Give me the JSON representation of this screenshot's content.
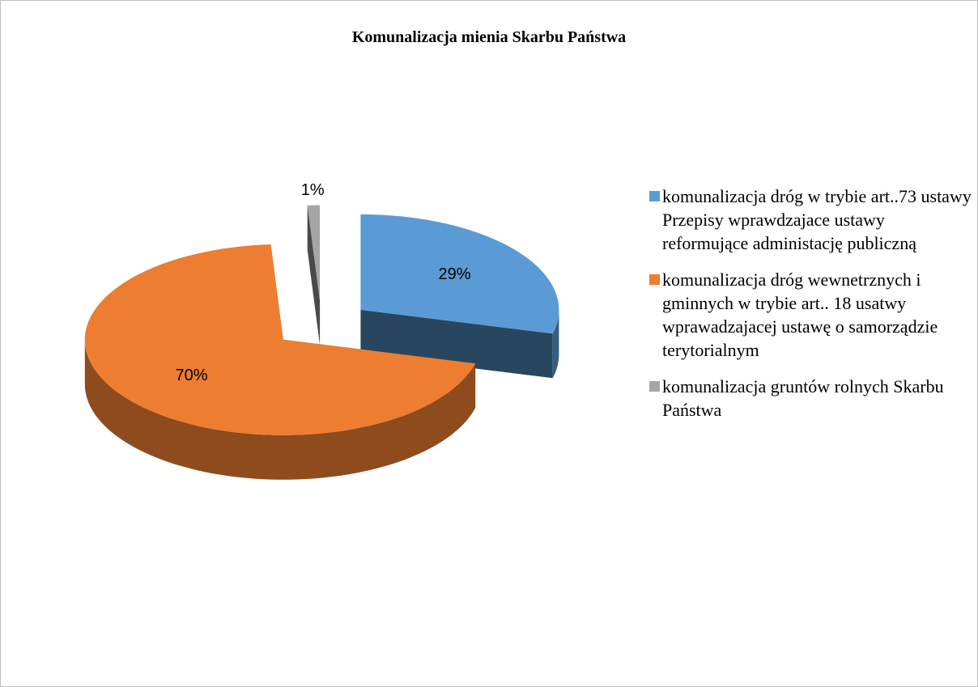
{
  "chart_data": {
    "type": "pie3d",
    "title": "Komunalizacja mienia Skarbu Państwa",
    "categories": [
      "komunalizacja dróg w trybie art..73 ustawy Przepisy wprawdzajace ustawy reformujące administację publiczną",
      "komunalizacja dróg wewnetrznych i gminnych w trybie art.. 18 usatwy wprawadzajacej ustawę o samorządzie terytorialnym",
      "komunalizacja gruntów rolnych Skarbu Państwa"
    ],
    "values": [
      29,
      70,
      1
    ],
    "value_labels": [
      "29%",
      "70%",
      "1%"
    ],
    "colors": [
      "#5b9bd5",
      "#ed7d31",
      "#a5a5a5"
    ],
    "legend": "right"
  }
}
